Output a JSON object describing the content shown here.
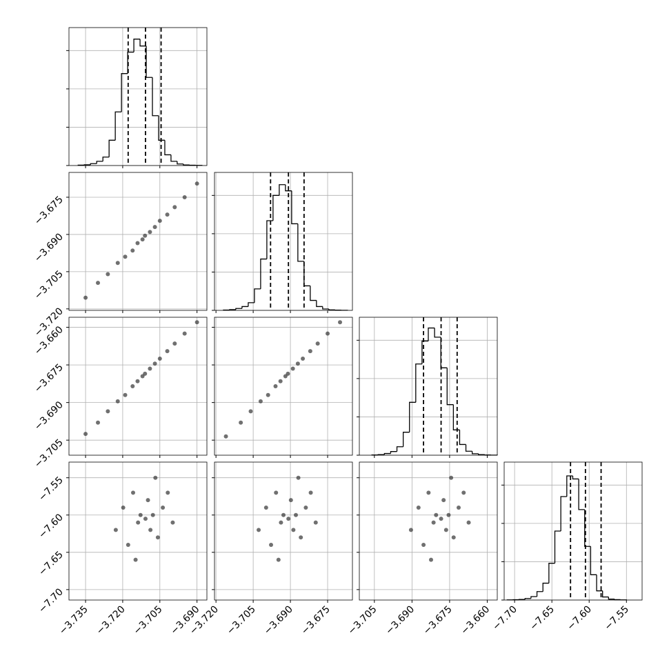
{
  "chart_data": [
    {
      "type": "histogram",
      "bins": [
        -3.738,
        -3.7355,
        -3.733,
        -3.7305,
        -3.728,
        -3.7255,
        -3.723,
        -3.7205,
        -3.718,
        -3.7155,
        -3.713,
        -3.7105,
        -3.708,
        -3.7055,
        -3.703,
        -3.7005,
        -3.698,
        -3.6955,
        -3.693,
        -3.6905,
        -3.688
      ],
      "counts": [
        5,
        10,
        25,
        55,
        110,
        330,
        700,
        1200,
        1480,
        1650,
        1560,
        1150,
        650,
        330,
        140,
        55,
        20,
        8,
        4,
        2
      ],
      "quantiles": [
        -3.7178,
        -3.7108,
        -3.7045
      ],
      "xlim": [
        -3.7417,
        -3.686
      ],
      "xticks": [
        -3.735,
        -3.72,
        -3.705,
        -3.69
      ],
      "ylim": [
        0,
        1800
      ],
      "yticks": [
        0,
        500,
        1000,
        1500
      ]
    },
    {
      "type": "scatter",
      "x": [
        -3.735,
        -3.73,
        -3.726,
        -3.722,
        -3.719,
        -3.716,
        -3.714,
        -3.712,
        -3.711,
        -3.709,
        -3.707,
        -3.705,
        -3.702,
        -3.699,
        -3.695,
        -3.69
      ],
      "y": [
        -3.7155,
        -3.7095,
        -3.706,
        -3.7015,
        -3.699,
        -3.6965,
        -3.6935,
        -3.692,
        -3.6905,
        -3.689,
        -3.687,
        -3.6845,
        -3.682,
        -3.679,
        -3.675,
        -3.6695
      ],
      "xlim": [
        -3.7417,
        -3.686
      ],
      "xticks": [
        -3.735,
        -3.72,
        -3.705,
        -3.69
      ],
      "ylim": [
        -3.7206,
        -3.665
      ],
      "yticks": [
        {
          "value": -3.675,
          "label": "−3.675"
        },
        {
          "value": -3.69,
          "label": "−3.690"
        },
        {
          "value": -3.705,
          "label": "−3.705"
        },
        {
          "value": -3.72,
          "label": "−3.720"
        }
      ]
    },
    {
      "type": "histogram",
      "bins": [
        -3.717,
        -3.7145,
        -3.712,
        -3.7095,
        -3.707,
        -3.7045,
        -3.702,
        -3.6995,
        -3.697,
        -3.6945,
        -3.692,
        -3.6895,
        -3.687,
        -3.6845,
        -3.682,
        -3.6795,
        -3.677,
        -3.6745,
        -3.672,
        -3.6695,
        -3.667
      ],
      "counts": [
        4,
        10,
        25,
        50,
        100,
        280,
        670,
        1170,
        1500,
        1640,
        1560,
        1130,
        640,
        320,
        130,
        50,
        18,
        7,
        3,
        1
      ],
      "quantiles": [
        -3.698,
        -3.6908,
        -3.6845
      ],
      "xlim": [
        -3.7206,
        -3.665
      ],
      "xticks": [
        -3.72,
        -3.705,
        -3.69,
        -3.675
      ],
      "ylim": [
        0,
        1800
      ],
      "yticks": [
        0,
        500,
        1000,
        1500
      ]
    },
    {
      "type": "scatter",
      "x": [
        -3.735,
        -3.73,
        -3.726,
        -3.722,
        -3.719,
        -3.716,
        -3.714,
        -3.712,
        -3.711,
        -3.709,
        -3.707,
        -3.705,
        -3.702,
        -3.699,
        -3.695,
        -3.69
      ],
      "y": [
        -3.7025,
        -3.698,
        -3.6935,
        -3.6895,
        -3.687,
        -3.6835,
        -3.6815,
        -3.6795,
        -3.6785,
        -3.6765,
        -3.6745,
        -3.6725,
        -3.6695,
        -3.6665,
        -3.6625,
        -3.658
      ],
      "xlim": [
        -3.7417,
        -3.686
      ],
      "xticks": [
        -3.735,
        -3.72,
        -3.705,
        -3.69
      ],
      "ylim": [
        -3.711,
        -3.656
      ],
      "yticks": [
        {
          "value": -3.66,
          "label": "−3.660"
        },
        {
          "value": -3.675,
          "label": "−3.675"
        },
        {
          "value": -3.69,
          "label": "−3.690"
        },
        {
          "value": -3.705,
          "label": "−3.705"
        }
      ]
    },
    {
      "type": "scatter",
      "x": [
        -3.716,
        -3.71,
        -3.706,
        -3.702,
        -3.699,
        -3.696,
        -3.694,
        -3.692,
        -3.691,
        -3.689,
        -3.687,
        -3.685,
        -3.682,
        -3.679,
        -3.675,
        -3.67
      ],
      "y": [
        -3.7035,
        -3.698,
        -3.6935,
        -3.6895,
        -3.687,
        -3.6835,
        -3.6815,
        -3.6795,
        -3.6785,
        -3.6765,
        -3.6745,
        -3.6725,
        -3.6695,
        -3.6665,
        -3.6625,
        -3.658
      ],
      "xlim": [
        -3.7206,
        -3.665
      ],
      "xticks": [
        -3.72,
        -3.705,
        -3.69,
        -3.675
      ],
      "ylim": [
        -3.711,
        -3.656
      ],
      "yticks": [
        -3.66,
        -3.675,
        -3.69,
        -3.705
      ]
    },
    {
      "type": "histogram",
      "bins": [
        -3.706,
        -3.7035,
        -3.701,
        -3.6985,
        -3.696,
        -3.6935,
        -3.691,
        -3.6885,
        -3.686,
        -3.6835,
        -3.681,
        -3.6785,
        -3.676,
        -3.6735,
        -3.671,
        -3.6685,
        -3.666,
        -3.6635,
        -3.661,
        -3.6585,
        -3.656
      ],
      "counts": [
        3,
        8,
        22,
        48,
        110,
        300,
        690,
        1190,
        1490,
        1660,
        1540,
        1140,
        660,
        330,
        140,
        52,
        19,
        8,
        3,
        1
      ],
      "quantiles": [
        -3.6854,
        -3.6784,
        -3.672
      ],
      "xlim": [
        -3.711,
        -3.656
      ],
      "xticks": [
        -3.705,
        -3.69,
        -3.675,
        -3.66
      ],
      "ylim": [
        0,
        1800
      ],
      "yticks": [
        0,
        500,
        1000,
        1500
      ]
    },
    {
      "type": "scatter",
      "x": [
        -3.7228,
        -3.7198,
        -3.7178,
        -3.7158,
        -3.7138,
        -3.7128,
        -3.7108,
        -3.7098,
        -3.7088,
        -3.7078,
        -3.7058,
        -3.7038,
        -3.7018,
        -3.6998,
        -3.7148,
        -3.7068
      ],
      "y": [
        -7.62,
        -7.59,
        -7.64,
        -7.57,
        -7.61,
        -7.6,
        -7.605,
        -7.58,
        -7.62,
        -7.6,
        -7.63,
        -7.59,
        -7.57,
        -7.61,
        -7.66,
        -7.55
      ],
      "xlim": [
        -3.7417,
        -3.686
      ],
      "xticks": [
        {
          "value": -3.735,
          "label": "−3.735"
        },
        {
          "value": -3.72,
          "label": "−3.720"
        },
        {
          "value": -3.705,
          "label": "−3.705"
        },
        {
          "value": -3.69,
          "label": "−3.690"
        }
      ],
      "ylim": [
        -7.714,
        -7.529
      ],
      "yticks": [
        {
          "value": -7.55,
          "label": "−7.55"
        },
        {
          "value": -7.6,
          "label": "−7.60"
        },
        {
          "value": -7.65,
          "label": "−7.65"
        },
        {
          "value": -7.7,
          "label": "−7.70"
        }
      ]
    },
    {
      "type": "scatter",
      "x": [
        -3.7028,
        -3.6998,
        -3.6978,
        -3.6958,
        -3.6938,
        -3.6928,
        -3.6908,
        -3.6898,
        -3.6888,
        -3.6878,
        -3.6858,
        -3.6838,
        -3.6818,
        -3.6798,
        -3.6948,
        -3.6868
      ],
      "y": [
        -7.62,
        -7.59,
        -7.64,
        -7.57,
        -7.61,
        -7.6,
        -7.605,
        -7.58,
        -7.62,
        -7.6,
        -7.63,
        -7.59,
        -7.57,
        -7.61,
        -7.66,
        -7.55
      ],
      "xlim": [
        -3.7206,
        -3.665
      ],
      "xticks": [
        {
          "value": -3.72,
          "label": "−3.720"
        },
        {
          "value": -3.705,
          "label": "−3.705"
        },
        {
          "value": -3.69,
          "label": "−3.690"
        },
        {
          "value": -3.675,
          "label": "−3.675"
        }
      ],
      "ylim": [
        -7.714,
        -7.529
      ],
      "yticks": [
        -7.55,
        -7.6,
        -7.65,
        -7.7
      ]
    },
    {
      "type": "scatter",
      "x": [
        -3.6904,
        -3.6874,
        -3.6854,
        -3.6834,
        -3.6814,
        -3.6804,
        -3.6784,
        -3.6774,
        -3.6764,
        -3.6754,
        -3.6734,
        -3.6714,
        -3.6694,
        -3.6674,
        -3.6824,
        -3.6744
      ],
      "y": [
        -7.62,
        -7.59,
        -7.64,
        -7.57,
        -7.61,
        -7.6,
        -7.605,
        -7.58,
        -7.62,
        -7.6,
        -7.63,
        -7.59,
        -7.57,
        -7.61,
        -7.66,
        -7.55
      ],
      "xlim": [
        -3.711,
        -3.656
      ],
      "xticks": [
        {
          "value": -3.705,
          "label": "−3.705"
        },
        {
          "value": -3.69,
          "label": "−3.690"
        },
        {
          "value": -3.675,
          "label": "−3.675"
        },
        {
          "value": -3.66,
          "label": "−3.660"
        }
      ],
      "ylim": [
        -7.714,
        -7.529
      ],
      "yticks": [
        -7.55,
        -7.6,
        -7.65,
        -7.7
      ]
    },
    {
      "type": "histogram",
      "bins": [
        -7.71,
        -7.702,
        -7.694,
        -7.686,
        -7.678,
        -7.67,
        -7.662,
        -7.654,
        -7.646,
        -7.638,
        -7.63,
        -7.622,
        -7.614,
        -7.606,
        -7.598,
        -7.59,
        -7.582,
        -7.574,
        -7.566,
        -7.558,
        -7.55
      ],
      "counts": [
        2,
        4,
        8,
        20,
        45,
        110,
        220,
        480,
        900,
        1350,
        1620,
        1580,
        1180,
        700,
        330,
        120,
        40,
        12,
        5,
        2
      ],
      "quantiles": [
        -7.625,
        -7.605,
        -7.584
      ],
      "xlim": [
        -7.714,
        -7.529
      ],
      "xticks": [
        {
          "value": -7.7,
          "label": "−7.70"
        },
        {
          "value": -7.65,
          "label": "−7.65"
        },
        {
          "value": -7.6,
          "label": "−7.60"
        },
        {
          "value": -7.55,
          "label": "−7.55"
        }
      ],
      "ylim": [
        0,
        1800
      ],
      "yticks": [
        0,
        500,
        1000,
        1500
      ]
    }
  ]
}
